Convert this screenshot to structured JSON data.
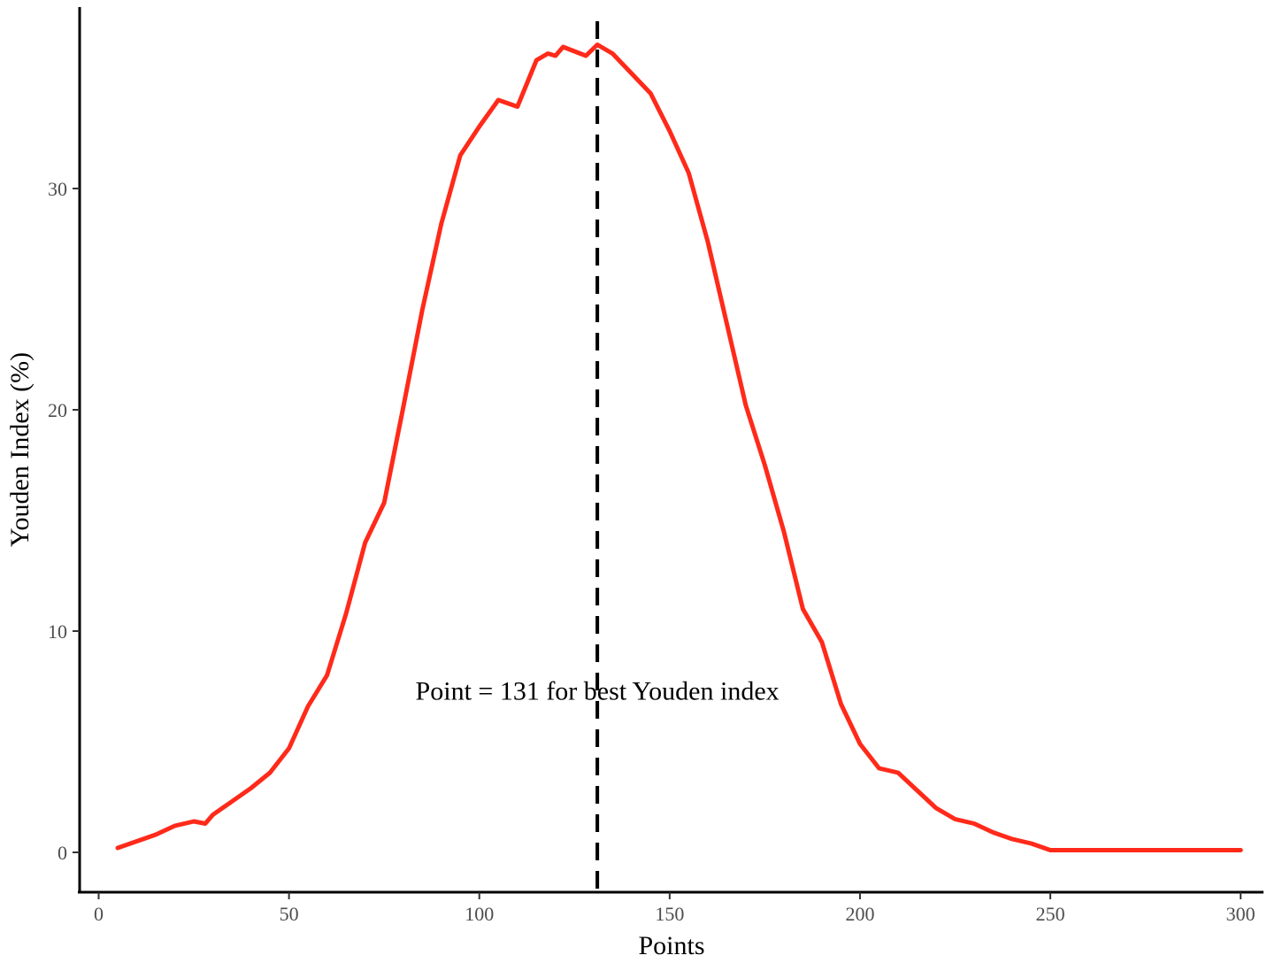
{
  "chart_data": {
    "type": "line",
    "title": "",
    "xlabel": "Points",
    "ylabel": "Youden Index (%)",
    "xlim": [
      -5,
      306
    ],
    "ylim": [
      -1.8,
      38.2
    ],
    "x_ticks": [
      0,
      50,
      100,
      150,
      200,
      250,
      300
    ],
    "y_ticks": [
      0,
      10,
      20,
      30
    ],
    "grid": false,
    "line_color": "#FF2A1A",
    "reference_line": {
      "x": 131,
      "style": "dashed",
      "color": "#000000"
    },
    "annotation": {
      "text": "Point = 131 for best Youden index",
      "x": 131,
      "y": 7.3
    },
    "series": [
      {
        "x": [
          5,
          10,
          15,
          20,
          25,
          28,
          30,
          35,
          40,
          45,
          50,
          55,
          60,
          65,
          70,
          75,
          80,
          85,
          90,
          95,
          100,
          105,
          110,
          115,
          118,
          120,
          122,
          125,
          128,
          131,
          135,
          140,
          145,
          150,
          155,
          160,
          165,
          170,
          175,
          180,
          185,
          190,
          195,
          200,
          205,
          210,
          215,
          220,
          225,
          230,
          235,
          240,
          245,
          250,
          255,
          260,
          265,
          270,
          275,
          280,
          285,
          290,
          295,
          300
        ],
        "y": [
          0.2,
          0.5,
          0.8,
          1.2,
          1.4,
          1.3,
          1.7,
          2.3,
          2.9,
          3.6,
          4.7,
          6.6,
          8.0,
          10.8,
          14.0,
          15.8,
          20.1,
          24.5,
          28.4,
          31.5,
          32.8,
          34.0,
          33.7,
          35.8,
          36.1,
          36.0,
          36.4,
          36.2,
          36.0,
          36.5,
          36.1,
          35.2,
          34.3,
          32.6,
          30.7,
          27.6,
          23.9,
          20.2,
          17.5,
          14.5,
          11.0,
          9.5,
          6.7,
          4.9,
          3.8,
          3.6,
          2.8,
          2.0,
          1.5,
          1.3,
          0.9,
          0.6,
          0.4,
          0.1,
          0.1,
          0.1,
          0.1,
          0.1,
          0.1,
          0.1,
          0.1,
          0.1,
          0.1,
          0.1
        ]
      }
    ]
  }
}
